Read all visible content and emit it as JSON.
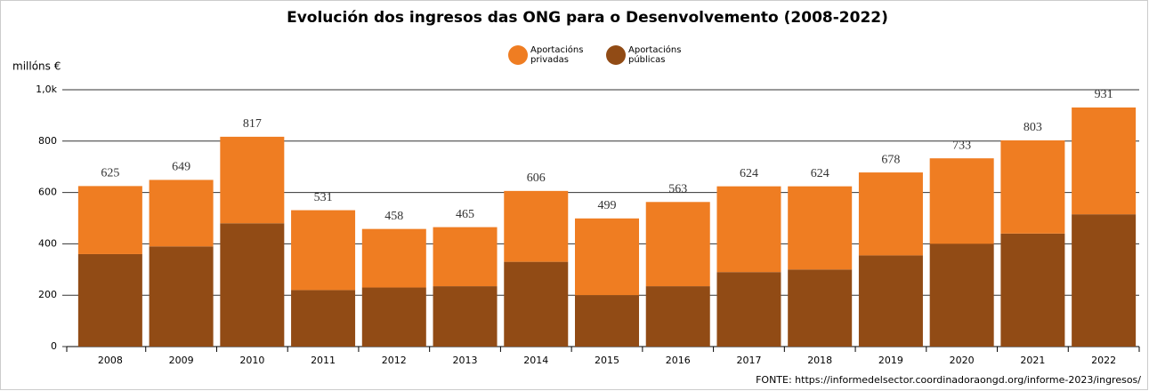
{
  "chart_data": {
    "type": "stacked_bar",
    "title": "Evolución dos ingresos das ONG para o Desenvolvemento (2008-2022)",
    "y_label": "millóns €",
    "source": "FONTE: https://informedelsector.coordinadoraongd.org/informe-2023/ingresos/",
    "categories": [
      "2008",
      "2009",
      "2010",
      "2011",
      "2012",
      "2013",
      "2014",
      "2015",
      "2016",
      "2017",
      "2018",
      "2019",
      "2020",
      "2021",
      "2022"
    ],
    "series": [
      {
        "name": "Aportacións públicas",
        "color": "#914b15",
        "values": [
          360,
          390,
          480,
          220,
          230,
          235,
          330,
          200,
          235,
          290,
          300,
          355,
          400,
          440,
          515
        ]
      },
      {
        "name": "Aportacións privadas",
        "color": "#ef7d22",
        "values": [
          265,
          259,
          337,
          311,
          228,
          230,
          276,
          299,
          328,
          334,
          324,
          323,
          333,
          363,
          416
        ]
      }
    ],
    "totals": [
      625,
      649,
      817,
      531,
      458,
      465,
      606,
      499,
      563,
      624,
      624,
      678,
      733,
      803,
      931
    ],
    "ylim": [
      0,
      1000
    ],
    "yticks": [
      0,
      200,
      400,
      600,
      800,
      {
        "value": 1000,
        "label": "1,0k"
      }
    ],
    "grid": true
  }
}
